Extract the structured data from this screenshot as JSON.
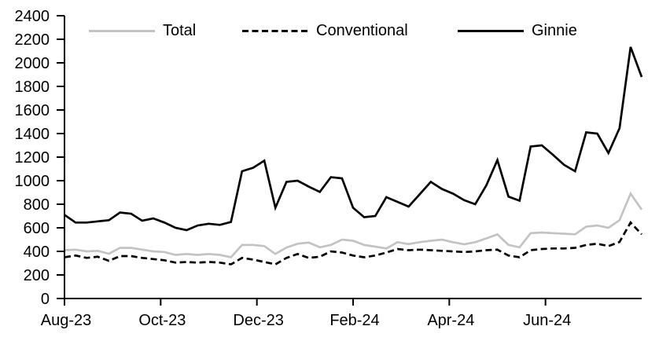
{
  "chart_data": {
    "type": "line",
    "title": "",
    "xlabel": "",
    "ylabel": "",
    "grid": false,
    "legend_position": "top",
    "x_axis": {
      "tick_labels": [
        "Aug-23",
        "Oct-23",
        "Dec-23",
        "Feb-24",
        "Apr-24",
        "Jun-24"
      ],
      "tick_month_positions": [
        0,
        2,
        4,
        6,
        8,
        10
      ],
      "months_span": 12
    },
    "y_axis": {
      "min": 0,
      "max": 2400,
      "step": 200,
      "tick_labels": [
        "0",
        "200",
        "400",
        "600",
        "800",
        "1000",
        "1200",
        "1400",
        "1600",
        "1800",
        "2000",
        "2200",
        "2400"
      ]
    },
    "series": [
      {
        "name": "Total",
        "color": "#c3c3c3",
        "style": "solid",
        "values": [
          410,
          415,
          400,
          405,
          380,
          430,
          430,
          415,
          400,
          395,
          370,
          378,
          370,
          378,
          370,
          350,
          455,
          455,
          445,
          378,
          433,
          465,
          475,
          435,
          455,
          500,
          490,
          455,
          440,
          425,
          478,
          462,
          478,
          490,
          500,
          478,
          460,
          478,
          510,
          545,
          455,
          435,
          555,
          560,
          555,
          550,
          545,
          610,
          620,
          600,
          665,
          890,
          755
        ]
      },
      {
        "name": "Conventional",
        "color": "#000000",
        "style": "dashed",
        "values": [
          350,
          365,
          345,
          355,
          320,
          360,
          360,
          345,
          335,
          325,
          305,
          310,
          305,
          310,
          305,
          290,
          345,
          330,
          310,
          290,
          345,
          378,
          345,
          355,
          400,
          390,
          365,
          350,
          365,
          390,
          420,
          410,
          415,
          410,
          405,
          400,
          395,
          400,
          410,
          415,
          365,
          350,
          410,
          420,
          425,
          425,
          430,
          455,
          465,
          445,
          480,
          645,
          545
        ]
      },
      {
        "name": "Ginnie",
        "color": "#000000",
        "style": "solid",
        "values": [
          710,
          645,
          645,
          655,
          665,
          730,
          720,
          660,
          680,
          645,
          600,
          580,
          620,
          635,
          625,
          650,
          1080,
          1110,
          1170,
          770,
          990,
          1000,
          950,
          905,
          1030,
          1020,
          770,
          690,
          700,
          860,
          820,
          780,
          885,
          990,
          930,
          890,
          835,
          800,
          960,
          1175,
          865,
          830,
          1290,
          1300,
          1220,
          1135,
          1080,
          1410,
          1400,
          1235,
          1445,
          2135,
          1880
        ]
      }
    ],
    "colors": {
      "axis": "#000000",
      "background": "#ffffff",
      "total_line": "#c3c3c3",
      "black_line": "#000000"
    }
  }
}
